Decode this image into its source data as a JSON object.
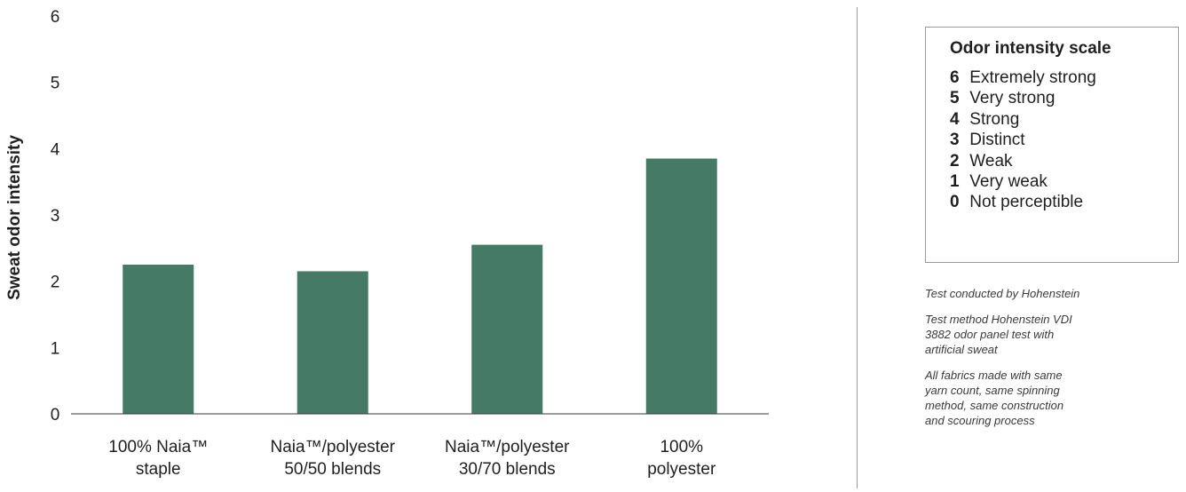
{
  "chart_data": {
    "type": "bar",
    "categories": [
      [
        "100% Naia™",
        "staple"
      ],
      [
        "Naia™/polyester",
        "50/50 blends"
      ],
      [
        "Naia™/polyester",
        "30/70 blends"
      ],
      [
        "100%",
        "polyester"
      ]
    ],
    "values": [
      2.25,
      2.15,
      2.55,
      3.85
    ],
    "ylabel": "Sweat odor intensity",
    "ylim": [
      0,
      6
    ],
    "yticks": [
      0,
      1,
      2,
      3,
      4,
      5,
      6
    ],
    "grid": false,
    "bar_color": "#457a66"
  },
  "legend": {
    "title": "Odor intensity scale",
    "items": [
      {
        "num": "6",
        "label": "Extremely strong"
      },
      {
        "num": "5",
        "label": "Very strong"
      },
      {
        "num": "4",
        "label": "Strong"
      },
      {
        "num": "3",
        "label": "Distinct"
      },
      {
        "num": "2",
        "label": "Weak"
      },
      {
        "num": "1",
        "label": "Very weak"
      },
      {
        "num": "0",
        "label": "Not perceptible"
      }
    ]
  },
  "notes": {
    "conducted_by": "Test conducted by Hohenstein",
    "method": "Test method Hohenstein VDI\n3882 odor panel test with\nartificial sweat",
    "fabrics": "All fabrics made with same\nyarn count, same spinning\nmethod, same construction\nand scouring process"
  }
}
